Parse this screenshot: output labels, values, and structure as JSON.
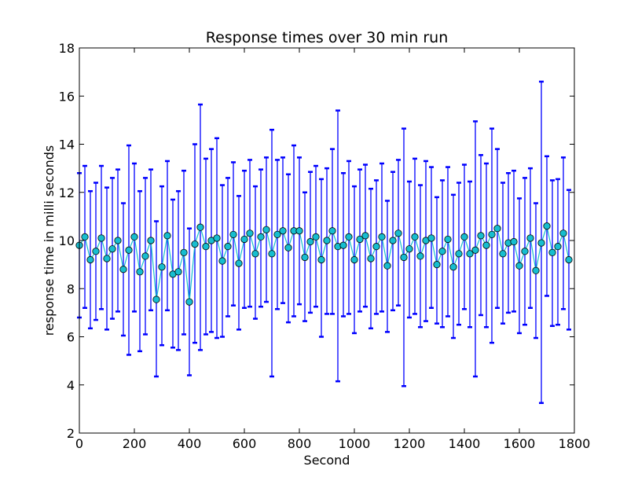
{
  "chart_data": {
    "type": "scatter",
    "title": "Response times over 30 min run",
    "xlabel": "Second",
    "ylabel": "response time in milli seconds",
    "xlim": [
      0,
      1800
    ],
    "ylim": [
      2,
      18
    ],
    "xticks": [
      0,
      200,
      400,
      600,
      800,
      1000,
      1200,
      1400,
      1600,
      1800
    ],
    "yticks": [
      2,
      4,
      6,
      8,
      10,
      12,
      14,
      16,
      18
    ],
    "grid": false,
    "legend": "none",
    "colors": {
      "line": "#17becf",
      "marker": "#17becf",
      "errorbar": "#0000ff",
      "axis": "#000000"
    },
    "series": [
      {
        "x": [
          0,
          20,
          40,
          60,
          80,
          100,
          120,
          140,
          160,
          180,
          200,
          220,
          240,
          260,
          280,
          300,
          320,
          340,
          360,
          380,
          400,
          420,
          440,
          460,
          480,
          500,
          520,
          540,
          560,
          580,
          600,
          620,
          640,
          660,
          680,
          700,
          720,
          740,
          760,
          780,
          800,
          820,
          840,
          860,
          880,
          900,
          920,
          940,
          960,
          980,
          1000,
          1020,
          1040,
          1060,
          1080,
          1100,
          1120,
          1140,
          1160,
          1180,
          1200,
          1220,
          1240,
          1260,
          1280,
          1300,
          1320,
          1340,
          1360,
          1380,
          1400,
          1420,
          1440,
          1460,
          1480,
          1500,
          1520,
          1540,
          1560,
          1580,
          1600,
          1620,
          1640,
          1660,
          1680,
          1700,
          1720,
          1740,
          1760,
          1780
        ],
        "y": [
          9.8,
          10.15,
          9.2,
          9.55,
          10.1,
          9.25,
          9.65,
          10.0,
          8.8,
          9.6,
          10.15,
          8.7,
          9.35,
          10.0,
          7.55,
          8.9,
          10.2,
          8.6,
          8.7,
          9.5,
          7.45,
          9.85,
          10.55,
          9.75,
          10.0,
          10.1,
          9.15,
          9.75,
          10.25,
          9.05,
          10.05,
          10.3,
          9.45,
          10.15,
          10.45,
          9.45,
          10.25,
          10.4,
          9.7,
          10.4,
          10.4,
          9.3,
          9.95,
          10.15,
          9.2,
          10.0,
          10.4,
          9.75,
          9.8,
          10.15,
          9.2,
          10.05,
          10.2,
          9.25,
          9.75,
          10.15,
          8.95,
          10.0,
          10.3,
          9.3,
          9.65,
          10.15,
          9.35,
          10.0,
          10.1,
          9.0,
          9.55,
          10.05,
          8.9,
          9.45,
          10.15,
          9.45,
          9.6,
          10.2,
          9.8,
          10.25,
          10.5,
          9.45,
          9.9,
          9.95,
          8.95,
          9.55,
          10.1,
          8.75,
          9.9,
          10.6,
          9.5,
          9.75,
          10.3,
          9.2
        ],
        "err_low": [
          6.8,
          7.2,
          6.35,
          6.7,
          7.15,
          6.3,
          6.75,
          7.05,
          6.05,
          5.25,
          7.05,
          5.4,
          6.1,
          7.1,
          4.35,
          5.65,
          7.1,
          5.55,
          5.45,
          6.1,
          4.4,
          5.75,
          5.45,
          6.1,
          6.2,
          5.95,
          6.0,
          6.85,
          7.3,
          6.3,
          7.2,
          7.25,
          6.75,
          7.25,
          7.45,
          4.35,
          7.15,
          7.4,
          6.6,
          6.85,
          7.35,
          6.65,
          7.0,
          7.25,
          6.0,
          6.95,
          6.95,
          4.15,
          6.85,
          6.95,
          6.15,
          7.05,
          7.25,
          6.35,
          6.95,
          7.05,
          6.2,
          7.1,
          7.3,
          3.95,
          6.8,
          6.95,
          6.4,
          6.65,
          7.2,
          6.55,
          6.4,
          6.85,
          5.95,
          6.5,
          7.15,
          6.4,
          4.35,
          6.9,
          6.4,
          5.75,
          7.2,
          6.55,
          7.0,
          7.05,
          6.15,
          6.5,
          7.2,
          5.95,
          3.25,
          7.7,
          6.45,
          6.5,
          7.15,
          6.3
        ],
        "err_high": [
          12.8,
          13.1,
          12.05,
          12.4,
          13.1,
          12.2,
          12.6,
          12.95,
          11.55,
          13.95,
          13.2,
          12.05,
          12.6,
          12.95,
          10.8,
          12.25,
          13.3,
          11.7,
          12.05,
          12.9,
          10.5,
          14.0,
          15.65,
          13.4,
          13.8,
          14.25,
          12.3,
          12.6,
          13.25,
          11.85,
          12.9,
          13.35,
          12.25,
          12.95,
          13.45,
          14.6,
          13.35,
          13.45,
          12.75,
          13.95,
          13.45,
          12.0,
          12.85,
          13.1,
          12.55,
          13.0,
          13.8,
          15.4,
          12.8,
          13.3,
          12.25,
          12.95,
          13.15,
          12.15,
          12.5,
          13.2,
          11.65,
          12.85,
          13.35,
          14.65,
          12.45,
          13.4,
          12.3,
          13.3,
          13.05,
          11.8,
          12.5,
          13.05,
          11.9,
          12.4,
          13.15,
          12.45,
          14.95,
          13.55,
          13.2,
          14.65,
          13.8,
          12.4,
          12.8,
          12.9,
          11.75,
          12.6,
          13.0,
          11.55,
          16.6,
          13.5,
          12.5,
          12.55,
          13.45,
          12.1
        ]
      }
    ]
  }
}
